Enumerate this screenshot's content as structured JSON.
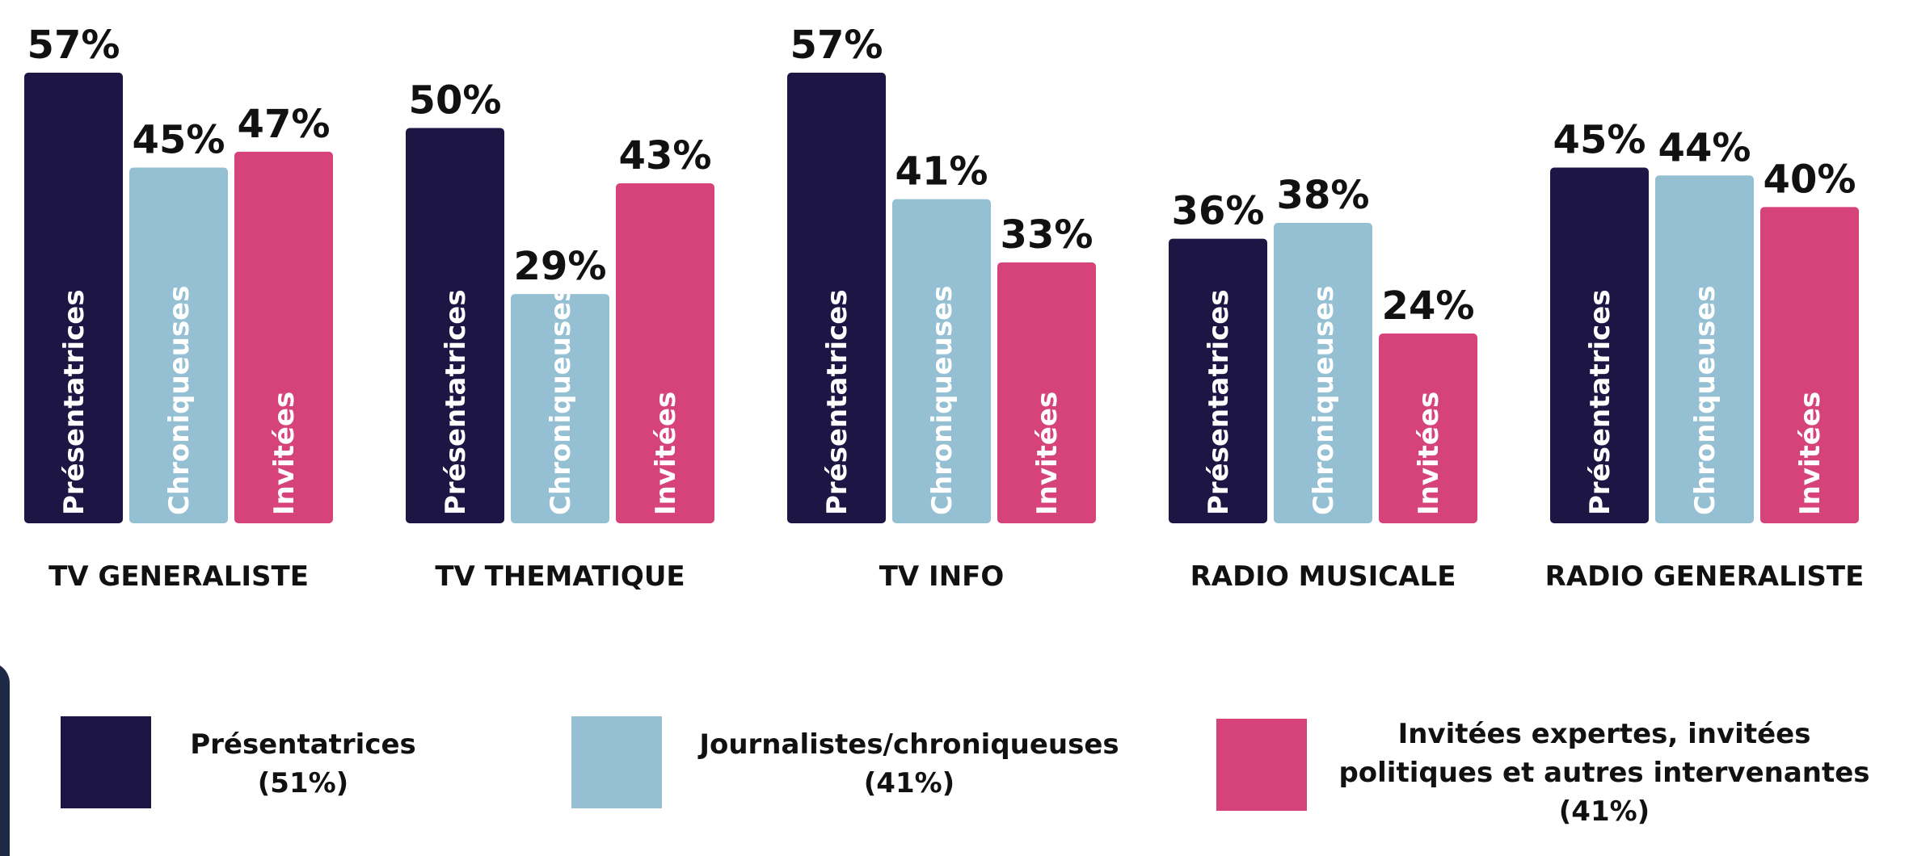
{
  "chart_data": {
    "type": "bar",
    "categories": [
      "TV GENERALISTE",
      "TV THEMATIQUE",
      "TV INFO",
      "RADIO MUSICALE",
      "RADIO GENERALISTE"
    ],
    "series": [
      {
        "name": "Présentatrices",
        "color": "#1d1543",
        "values": [
          57,
          50,
          57,
          36,
          45
        ],
        "labels": [
          "57%",
          "50%",
          "57%",
          "36%",
          "45%"
        ]
      },
      {
        "name": "Chroniqueuses",
        "color": "#95c0d3",
        "values": [
          45,
          29,
          41,
          38,
          44
        ],
        "labels": [
          "45%",
          "29%",
          "41%",
          "38%",
          "44%"
        ]
      },
      {
        "name": "Invitées",
        "color": "#d6427a",
        "values": [
          47,
          43,
          33,
          24,
          40
        ],
        "labels": [
          "47%",
          "43%",
          "33%",
          "24%",
          "40%"
        ]
      }
    ],
    "legend": [
      {
        "line1": "Présentatrices",
        "line2": "(51%)",
        "line3": "",
        "color": "#1d1543"
      },
      {
        "line1": "Journalistes/chroniqueuses",
        "line2": "(41%)",
        "line3": "",
        "color": "#95c0d3"
      },
      {
        "line1": "Invitées expertes, invitées",
        "line2": "politiques et autres intervenantes",
        "line3": "(41%)",
        "color": "#d6427a"
      }
    ]
  }
}
